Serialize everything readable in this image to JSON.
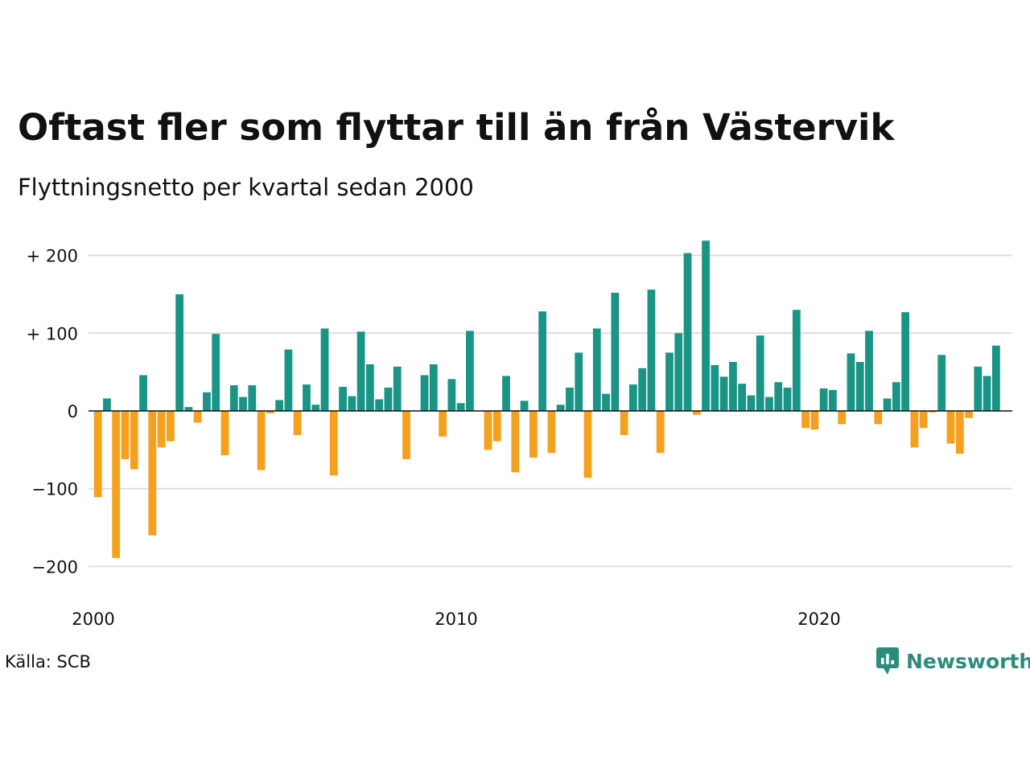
{
  "title": "Oftast fler som flyttar till än från Västervik",
  "subtitle": "Flyttningsnetto per kvartal sedan 2000",
  "source": "Källa: SCB",
  "brand": "Newsworthy",
  "colors": {
    "positive": "#1a9485",
    "negative": "#f5a11e",
    "grid": "#dddddd",
    "zero": "#111111",
    "brand": "#2c8c7c"
  },
  "chart_data": {
    "type": "bar",
    "title": "Oftast fler som flyttar till än från Västervik",
    "subtitle": "Flyttningsnetto per kvartal sedan 2000",
    "xlabel": "",
    "ylabel": "",
    "ylim": [
      -220,
      220
    ],
    "grid": true,
    "y_ticks": [
      {
        "value": 200,
        "label": "+ 200"
      },
      {
        "value": 100,
        "label": "+ 100"
      },
      {
        "value": 0,
        "label": "0"
      },
      {
        "value": -100,
        "label": "−100"
      },
      {
        "value": -200,
        "label": "−200"
      }
    ],
    "x_ticks": [
      {
        "value": 2000,
        "label": "2000"
      },
      {
        "value": 2010,
        "label": "2010"
      },
      {
        "value": 2020,
        "label": "2020"
      }
    ],
    "start_year": 2000,
    "frequency": "quarterly",
    "values": [
      -111,
      16,
      -189,
      -62,
      -75,
      46,
      -160,
      -47,
      -39,
      150,
      5,
      -15,
      24,
      99,
      -57,
      33,
      18,
      33,
      -76,
      -3,
      14,
      79,
      -31,
      34,
      8,
      106,
      -83,
      31,
      19,
      102,
      60,
      15,
      30,
      57,
      -62,
      0,
      46,
      60,
      -33,
      41,
      10,
      103,
      0,
      -50,
      -39,
      45,
      -79,
      13,
      -60,
      128,
      -54,
      8,
      30,
      75,
      -86,
      106,
      22,
      152,
      -31,
      34,
      55,
      156,
      -54,
      75,
      100,
      203,
      -5,
      219,
      59,
      44,
      63,
      35,
      20,
      97,
      18,
      37,
      30,
      130,
      -22,
      -24,
      29,
      27,
      -17,
      74,
      63,
      103,
      -17,
      16,
      37,
      127,
      -47,
      -22,
      -2,
      72,
      -42,
      -55,
      -9,
      57,
      45,
      84
    ]
  }
}
